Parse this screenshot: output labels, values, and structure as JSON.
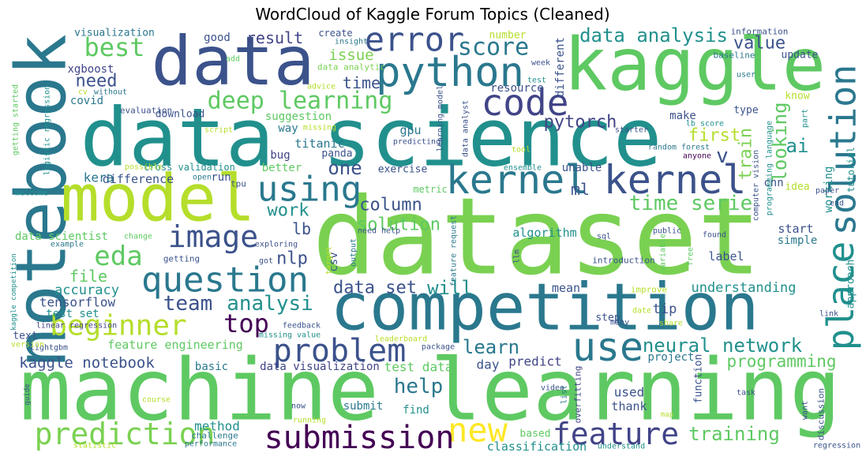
{
  "title": "WordCloud of Kaggle Forum Topics (Cleaned)",
  "words": [
    "dataset",
    "machine learning",
    "data science",
    "competition",
    "kaggle",
    "data",
    "notebook",
    "model",
    "python",
    "error",
    "solution",
    "place",
    "kernel",
    "kernel",
    "code",
    "using",
    "question",
    "image",
    "problem",
    "use",
    "new",
    "submission",
    "feature",
    "prediction",
    "beginner",
    "top",
    "eda",
    "best",
    "need",
    "score",
    "deep learning",
    "data analysis",
    "value",
    "result",
    "issue",
    "time",
    "pytorch",
    "looking",
    "train",
    "first",
    "ai",
    "v",
    "one",
    "time serie",
    "ml",
    "work",
    "column",
    "solution",
    "lb",
    "nlp",
    "file",
    "accuracy",
    "team",
    "analysi",
    "data set",
    "will",
    "tensorflow",
    "test set",
    "kaggle notebook",
    "help",
    "learn",
    "neural network",
    "programming",
    "understanding",
    "training",
    "tip",
    "feature engineering",
    "data visualization",
    "test data",
    "day",
    "predict",
    "project",
    "basic",
    "used",
    "thank",
    "submit",
    "find",
    "method",
    "classification",
    "based",
    "mean",
    "algorithm",
    "label",
    "simple",
    "start",
    "csv",
    "data scientist",
    "difference",
    "kera",
    "better",
    "bug",
    "titanic",
    "panda",
    "way",
    "suggestion",
    "gpu",
    "exercise",
    "make",
    "type",
    "cnn",
    "working",
    "tutorial",
    "idea",
    "know",
    "update",
    "information",
    "baseline",
    "resource",
    "different",
    "number",
    "create",
    "good",
    "visualization",
    "xgboost",
    "covid",
    "download",
    "evaluation",
    "without",
    "cv",
    "advice",
    "data analytic",
    "insight",
    "add",
    "week",
    "test",
    "learning model",
    "data analyst",
    "predicting",
    "missing",
    "script",
    "starter",
    "lb score",
    "tool",
    "random forest",
    "anyone",
    "unable",
    "ensemble",
    "metric",
    "cross validation",
    "possible",
    "open",
    "run",
    "tpu",
    "welcome",
    "getting started",
    "logistic regression",
    "computer vision",
    "programming language",
    "part",
    "user",
    "paper",
    "end",
    "public",
    "found",
    "sql",
    "need help",
    "feature request",
    "target",
    "output",
    "llm",
    "variable",
    "free",
    "introduction",
    "getting",
    "change",
    "example",
    "exploring",
    "got",
    "improve",
    "date",
    "step",
    "many",
    "share",
    "approach",
    "link",
    "kaggle competition",
    "linear regression",
    "text",
    "lightgbm",
    "version",
    "feedback",
    "missing value",
    "leaderboard",
    "package",
    "list",
    "video",
    "overfitting",
    "function",
    "task",
    "want",
    "discussion",
    "map",
    "guide",
    "course",
    "now",
    "running",
    "challenge",
    "performance",
    "statistic",
    "understand",
    "regression"
  ]
}
